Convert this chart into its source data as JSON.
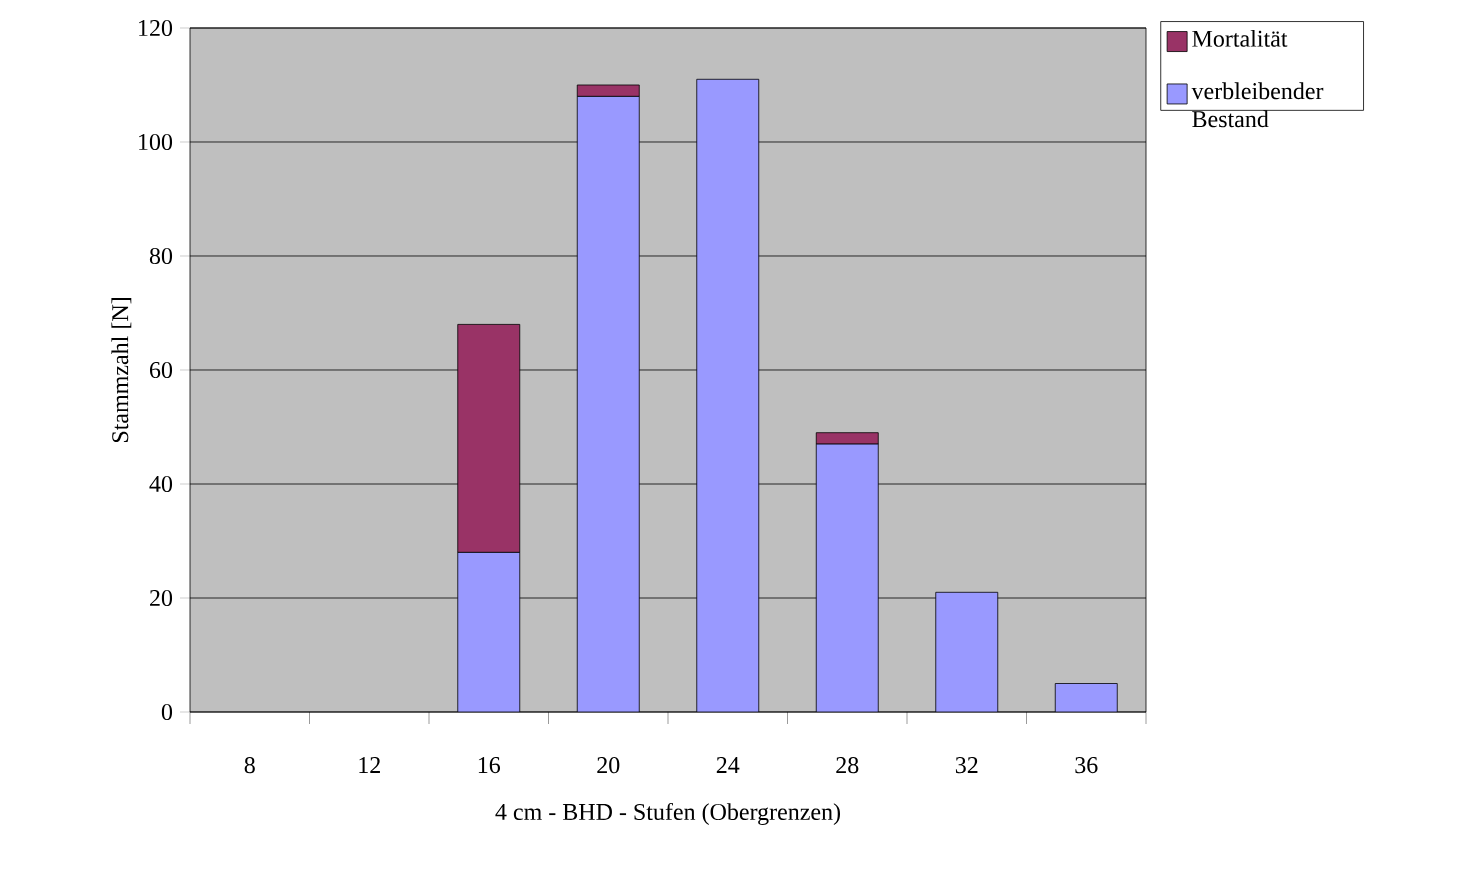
{
  "chart_data": {
    "type": "bar",
    "stacked": true,
    "xlabel": "4 cm - BHD - Stufen (Obergrenzen)",
    "ylabel": "Stammzahl [N]",
    "categories": [
      "8",
      "12",
      "16",
      "20",
      "24",
      "28",
      "32",
      "36"
    ],
    "series": [
      {
        "name": "verbleibender Bestand",
        "color": "#9999ff",
        "values": [
          0,
          0,
          28,
          108,
          111,
          47,
          21,
          5
        ]
      },
      {
        "name": "Mortalität",
        "color": "#993366",
        "values": [
          0,
          0,
          40,
          2,
          0,
          2,
          0,
          0
        ]
      }
    ],
    "ylim": [
      0,
      120
    ],
    "yticks": [
      0,
      20,
      40,
      60,
      80,
      100,
      120
    ],
    "grid": "y",
    "legend": "top right"
  }
}
